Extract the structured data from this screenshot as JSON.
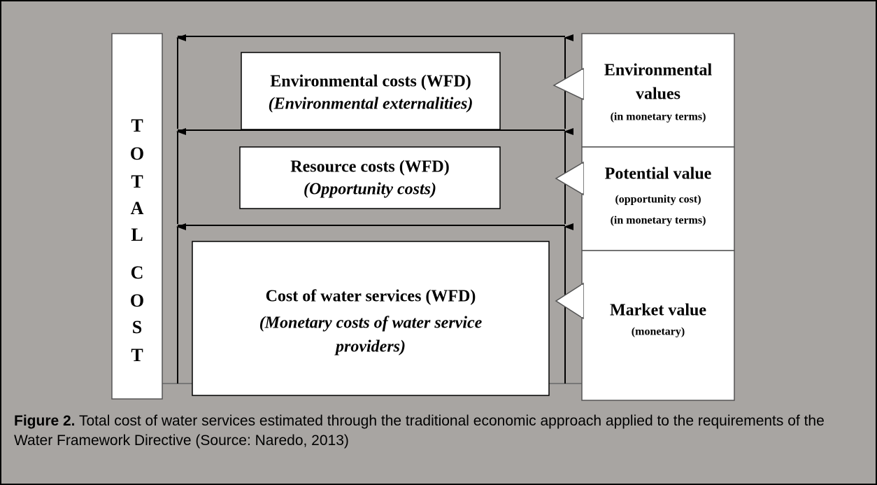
{
  "total_label": {
    "words": [
      [
        "T",
        "O",
        "T",
        "A",
        "L"
      ],
      [
        "C",
        "O",
        "S",
        "T"
      ]
    ]
  },
  "cost_layers": [
    {
      "title": "Environmental costs (WFD)",
      "subtitle": [
        "(Environmental externalities)"
      ]
    },
    {
      "title": "Resource costs (WFD)",
      "subtitle": [
        "(Opportunity costs)"
      ]
    },
    {
      "title": "Cost of water services (WFD)",
      "subtitle": [
        "(Monetary costs of water service",
        "providers)"
      ]
    }
  ],
  "value_labels": [
    {
      "title": [
        "Environmental",
        "values"
      ],
      "notes": [
        "(in monetary terms)"
      ]
    },
    {
      "title": [
        "Potential value"
      ],
      "notes": [
        "(opportunity cost)",
        "(in monetary terms)"
      ]
    },
    {
      "title": [
        "Market value"
      ],
      "notes": [
        "(monetary)"
      ]
    }
  ],
  "caption": {
    "label": "Figure 2.",
    "text": "Total cost of water services estimated through the traditional economic approach applied to the requirements of the Water Framework Directive (Source: Naredo, 2013)"
  }
}
